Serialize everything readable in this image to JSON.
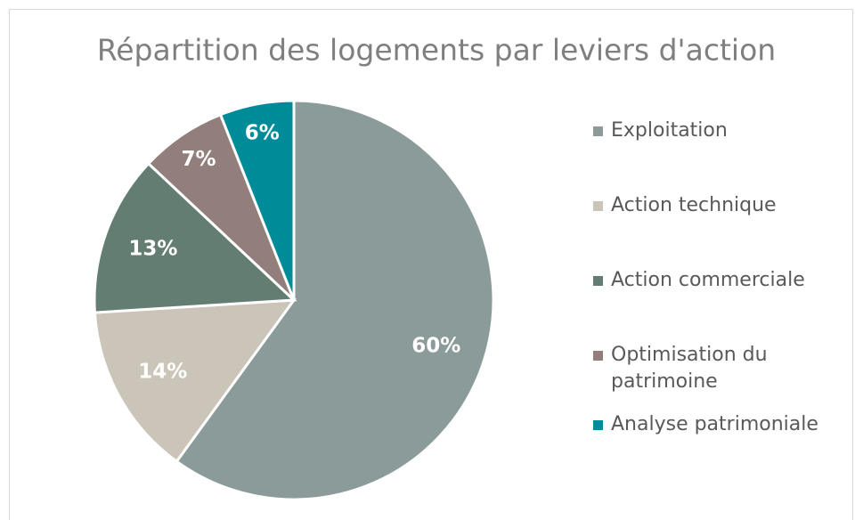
{
  "chart_data": {
    "type": "pie",
    "title": "Répartition des logements par leviers d'action",
    "categories": [
      "Exploitation",
      "Action technique",
      "Action commerciale",
      "Optimisation du patrimoine",
      "Analyse patrimoniale"
    ],
    "values": [
      60,
      14,
      13,
      7,
      6
    ],
    "value_labels": [
      "60%",
      "14%",
      "13%",
      "7%",
      "6%"
    ],
    "colors": [
      "#8a9b9a",
      "#cbc4b8",
      "#647d72",
      "#927f7c",
      "#008b99"
    ],
    "legend": "right"
  }
}
